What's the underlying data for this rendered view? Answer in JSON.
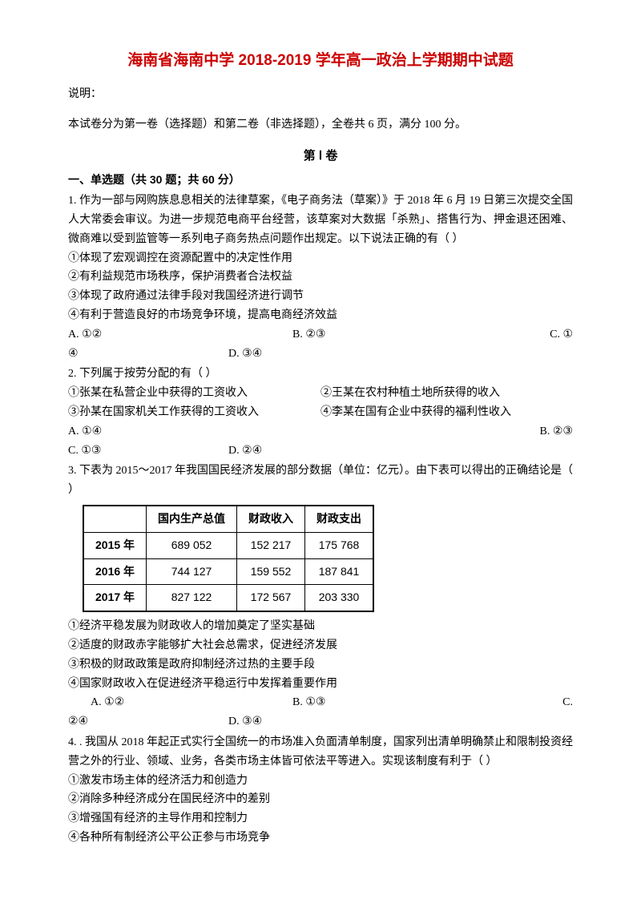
{
  "title": "海南省海南中学 2018-2019 学年高一政治上学期期中试题",
  "description_label": "说明：",
  "paper_structure": "本试卷分为第一卷（选择题）和第二卷（非选择题），全卷共 6 页，满分 100 分。",
  "volume_title": "第 Ⅰ 卷",
  "section_header": "一、单选题（共 30 题；共 60 分）",
  "q1": {
    "text": "1. 作为一部与网购族息息相关的法律草案，《电子商务法（草案）》于 2018 年 6 月 19 日第三次提交全国人大常委会审议。为进一步规范电商平台经营，该草案对大数据「杀熟」、搭售行为、押金退还困难、微商难以受到监管等一系列电子商务热点问题作出规定。以下说法正确的有（    ）",
    "o1": "①体现了宏观调控在资源配置中的决定性作用",
    "o2": "②有利益规范市场秩序，保护消费者合法权益",
    "o3": "③体现了政府通过法律手段对我国经济进行调节",
    "o4": "④有利于营造良好的市场竞争环境，提高电商经济效益",
    "opt_a": "A. ①②",
    "opt_b": "B. ②③",
    "opt_c": "C. ①",
    "opt_c2": "④",
    "opt_d": "D. ③④"
  },
  "q2": {
    "text": "2. 下列属于按劳分配的有（    ）",
    "o1": "①张某在私营企业中获得的工资收入",
    "o2": "②王某在农村种植土地所获得的收入",
    "o3": "③孙某在国家机关工作获得的工资收入",
    "o4": "④李某在国有企业中获得的福利性收入",
    "opt_a": "A. ①④",
    "opt_b": "B. ②③",
    "opt_c": "C. ①③",
    "opt_d": "D. ②④"
  },
  "q3": {
    "text": "3. 下表为 2015～2017 年我国国民经济发展的部分数据（单位：亿元）。由下表可以得出的正确结论是（    ）",
    "table": {
      "headers": [
        "",
        "国内生产总值",
        "财政收入",
        "财政支出"
      ],
      "rows": [
        [
          "2015 年",
          "689 052",
          "152 217",
          "175 768"
        ],
        [
          "2016 年",
          "744 127",
          "159 552",
          "187 841"
        ],
        [
          "2017 年",
          "827 122",
          "172 567",
          "203 330"
        ]
      ]
    },
    "o1": "①经济平稳发展为财政收人的增加奠定了坚实基础",
    "o2": "②适度的财政赤字能够扩大社会总需求，促进经济发展",
    "o3": "③积极的财政政策是政府抑制经济过热的主要手段",
    "o4": "④国家财政收入在促进经济平稳运行中发挥着重要作用",
    "opt_a": "A. ①②",
    "opt_b": "B. ①③",
    "opt_c": "C.",
    "opt_c2": "②④",
    "opt_d": "D. ③④"
  },
  "q4": {
    "text": "4. . 我国从 2018 年起正式实行全国统一的市场准入负面清单制度，国家列出清单明确禁止和限制投资经营之外的行业、领域、业务，各类市场主体皆可依法平等进入。实现该制度有利于（    ）",
    "o1": "①激发市场主体的经济活力和创造力",
    "o2": "②消除多种经济成分在国民经济中的差别",
    "o3": "③增强国有经济的主导作用和控制力",
    "o4": "④各种所有制经济公平公正参与市场竞争"
  }
}
